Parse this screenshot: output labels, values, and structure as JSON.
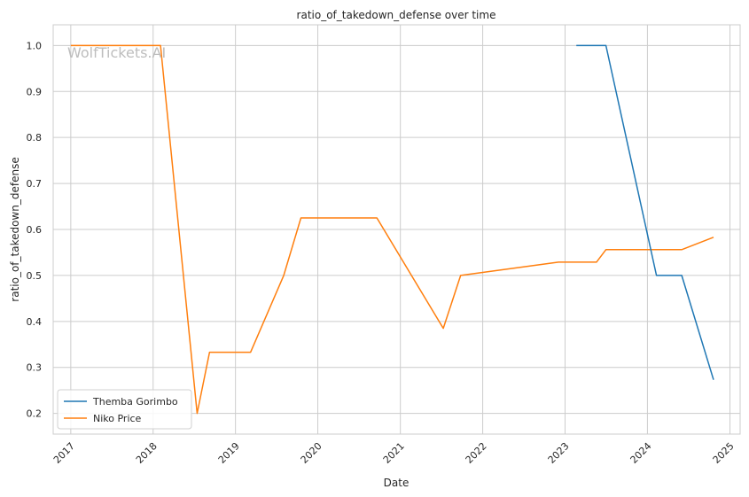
{
  "watermark": "WolfTickets.AI",
  "chart_data": {
    "type": "line",
    "title": "ratio_of_takedown_defense over time",
    "xlabel": "Date",
    "ylabel": "ratio_of_takedown_defense",
    "x_type": "date",
    "xlim": [
      "2016-10-15",
      "2025-02-15"
    ],
    "ylim": [
      0.155,
      1.045
    ],
    "x_ticks": [
      "2017",
      "2018",
      "2019",
      "2020",
      "2021",
      "2022",
      "2023",
      "2024",
      "2025"
    ],
    "y_ticks": [
      "0.2",
      "0.3",
      "0.4",
      "0.5",
      "0.6",
      "0.7",
      "0.8",
      "0.9",
      "1.0"
    ],
    "grid": true,
    "legend_position": "lower-left",
    "series": [
      {
        "name": "Themba Gorimbo",
        "color": "#1f77b4",
        "points": [
          [
            "2023-02-20",
            1.0
          ],
          [
            "2023-07-01",
            1.0
          ],
          [
            "2024-02-10",
            0.5
          ],
          [
            "2024-06-01",
            0.5
          ],
          [
            "2024-10-20",
            0.273
          ]
        ]
      },
      {
        "name": "Niko Price",
        "color": "#ff7f0e",
        "points": [
          [
            "2017-01-01",
            1.0
          ],
          [
            "2018-02-03",
            1.0
          ],
          [
            "2018-07-15",
            0.2
          ],
          [
            "2018-09-08",
            0.333
          ],
          [
            "2019-03-09",
            0.333
          ],
          [
            "2019-08-03",
            0.5
          ],
          [
            "2019-10-18",
            0.625
          ],
          [
            "2020-09-19",
            0.625
          ],
          [
            "2021-07-10",
            0.385
          ],
          [
            "2021-09-25",
            0.5
          ],
          [
            "2022-12-03",
            0.529
          ],
          [
            "2023-05-20",
            0.529
          ],
          [
            "2023-07-01",
            0.556
          ],
          [
            "2024-06-01",
            0.556
          ],
          [
            "2024-10-20",
            0.583
          ]
        ]
      }
    ]
  }
}
